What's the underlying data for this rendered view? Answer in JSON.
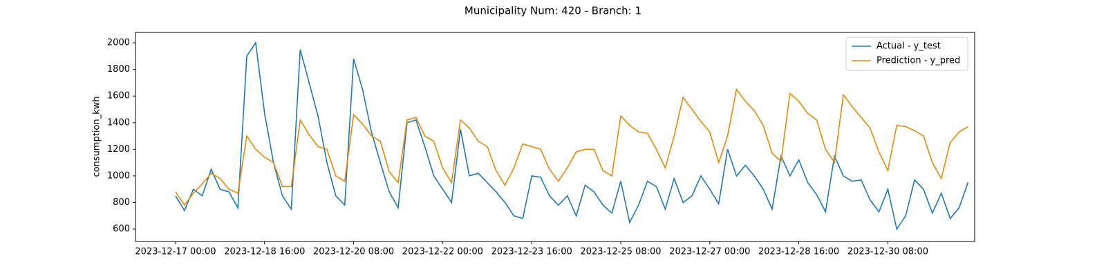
{
  "chart_data": {
    "type": "line",
    "title": "Municipality Num: 420 - Branch: 1",
    "y_label": "consumption_kwh",
    "x": [
      "2023-12-17 00:00",
      "2023-12-17 04:00",
      "2023-12-17 08:00",
      "2023-12-17 12:00",
      "2023-12-17 16:00",
      "2023-12-17 20:00",
      "2023-12-18 00:00",
      "2023-12-18 04:00",
      "2023-12-18 08:00",
      "2023-12-18 12:00",
      "2023-12-18 16:00",
      "2023-12-18 20:00",
      "2023-12-19 00:00",
      "2023-12-19 04:00",
      "2023-12-19 08:00",
      "2023-12-19 12:00",
      "2023-12-19 16:00",
      "2023-12-19 20:00",
      "2023-12-20 00:00",
      "2023-12-20 04:00",
      "2023-12-20 08:00",
      "2023-12-20 12:00",
      "2023-12-20 16:00",
      "2023-12-20 20:00",
      "2023-12-21 00:00",
      "2023-12-21 04:00",
      "2023-12-21 08:00",
      "2023-12-21 12:00",
      "2023-12-21 16:00",
      "2023-12-21 20:00",
      "2023-12-22 00:00",
      "2023-12-22 04:00",
      "2023-12-22 08:00",
      "2023-12-22 12:00",
      "2023-12-22 16:00",
      "2023-12-22 20:00",
      "2023-12-23 00:00",
      "2023-12-23 04:00",
      "2023-12-23 08:00",
      "2023-12-23 12:00",
      "2023-12-23 16:00",
      "2023-12-23 20:00",
      "2023-12-24 00:00",
      "2023-12-24 04:00",
      "2023-12-24 08:00",
      "2023-12-24 12:00",
      "2023-12-24 16:00",
      "2023-12-24 20:00",
      "2023-12-25 00:00",
      "2023-12-25 04:00",
      "2023-12-25 08:00",
      "2023-12-25 12:00",
      "2023-12-25 16:00",
      "2023-12-25 20:00",
      "2023-12-26 00:00",
      "2023-12-26 04:00",
      "2023-12-26 08:00",
      "2023-12-26 12:00",
      "2023-12-26 16:00",
      "2023-12-26 20:00",
      "2023-12-27 00:00",
      "2023-12-27 04:00",
      "2023-12-27 08:00",
      "2023-12-27 12:00",
      "2023-12-27 16:00",
      "2023-12-27 20:00",
      "2023-12-28 00:00",
      "2023-12-28 04:00",
      "2023-12-28 08:00",
      "2023-12-28 12:00",
      "2023-12-28 16:00",
      "2023-12-28 20:00",
      "2023-12-29 00:00",
      "2023-12-29 04:00",
      "2023-12-29 08:00",
      "2023-12-29 12:00",
      "2023-12-29 16:00",
      "2023-12-29 20:00",
      "2023-12-30 00:00",
      "2023-12-30 04:00",
      "2023-12-30 08:00",
      "2023-12-30 12:00",
      "2023-12-30 16:00",
      "2023-12-30 20:00",
      "2023-12-31 00:00",
      "2023-12-31 04:00",
      "2023-12-31 08:00",
      "2023-12-31 12:00",
      "2023-12-31 16:00",
      "2023-12-31 20:00"
    ],
    "series": [
      {
        "name": "Actual - y_test",
        "color": "#1f77b4",
        "values": [
          850,
          740,
          900,
          850,
          1050,
          900,
          880,
          760,
          1900,
          2000,
          1470,
          1100,
          850,
          750,
          1950,
          1700,
          1450,
          1100,
          850,
          780,
          1880,
          1650,
          1330,
          1100,
          880,
          760,
          1400,
          1420,
          1220,
          1000,
          900,
          800,
          1350,
          1000,
          1020,
          950,
          880,
          800,
          700,
          680,
          1000,
          990,
          850,
          780,
          850,
          700,
          930,
          880,
          780,
          720,
          960,
          650,
          780,
          960,
          920,
          750,
          980,
          800,
          850,
          1000,
          900,
          790,
          1200,
          1000,
          1080,
          1000,
          900,
          750,
          1150,
          1000,
          1120,
          950,
          860,
          730,
          1150,
          1000,
          960,
          970,
          820,
          730,
          900,
          600,
          700,
          970,
          900,
          720,
          870,
          680,
          760,
          950
        ]
      },
      {
        "name": "Prediction - y_pred",
        "color": "#e08a0b",
        "values": [
          880,
          780,
          870,
          940,
          1020,
          980,
          900,
          870,
          1300,
          1200,
          1140,
          1100,
          920,
          920,
          1420,
          1310,
          1220,
          1200,
          1000,
          960,
          1460,
          1390,
          1300,
          1260,
          1030,
          950,
          1420,
          1440,
          1300,
          1260,
          1060,
          950,
          1420,
          1360,
          1260,
          1220,
          1040,
          930,
          1060,
          1240,
          1220,
          1200,
          1050,
          960,
          1060,
          1180,
          1200,
          1200,
          1040,
          1000,
          1450,
          1380,
          1330,
          1320,
          1200,
          1060,
          1300,
          1590,
          1500,
          1410,
          1330,
          1100,
          1300,
          1650,
          1560,
          1490,
          1380,
          1170,
          1110,
          1620,
          1560,
          1470,
          1420,
          1200,
          1100,
          1610,
          1520,
          1440,
          1360,
          1180,
          1040,
          1380,
          1370,
          1340,
          1300,
          1100,
          980,
          1250,
          1330,
          1370
        ]
      }
    ],
    "xlim": [
      "2023-12-16 06:00",
      "2023-12-31 23:00"
    ],
    "xticks": [
      "2023-12-17 00:00",
      "2023-12-18 16:00",
      "2023-12-20 08:00",
      "2023-12-22 00:00",
      "2023-12-23 16:00",
      "2023-12-25 08:00",
      "2023-12-27 00:00",
      "2023-12-28 16:00",
      "2023-12-30 08:00"
    ],
    "ylim": [
      507,
      2078
    ],
    "yticks": [
      600,
      800,
      1000,
      1200,
      1400,
      1600,
      1800,
      2000
    ],
    "legend": "upper right"
  }
}
